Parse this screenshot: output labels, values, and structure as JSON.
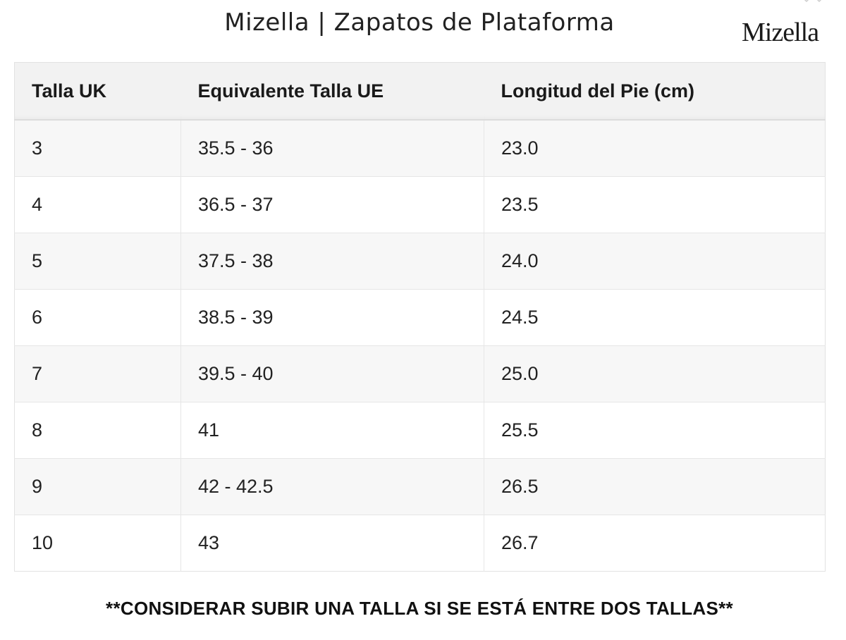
{
  "header": {
    "title": "Mizella | Zapatos de Plataforma",
    "logo_text": "Mizella"
  },
  "table": {
    "columns": [
      "Talla UK",
      "Equivalente Talla UE",
      "Longitud del Pie (cm)"
    ],
    "rows": [
      [
        "3",
        "35.5 - 36",
        "23.0"
      ],
      [
        "4",
        "36.5 - 37",
        "23.5"
      ],
      [
        "5",
        "37.5 - 38",
        "24.0"
      ],
      [
        "6",
        "38.5 - 39",
        "24.5"
      ],
      [
        "7",
        "39.5 - 40",
        "25.0"
      ],
      [
        "8",
        "41",
        "25.5"
      ],
      [
        "9",
        "42 - 42.5",
        "26.5"
      ],
      [
        "10",
        "43",
        "26.7"
      ]
    ]
  },
  "footnote": "**CONSIDERAR SUBIR UNA TALLA SI SE ESTÁ ENTRE DOS TALLAS**"
}
